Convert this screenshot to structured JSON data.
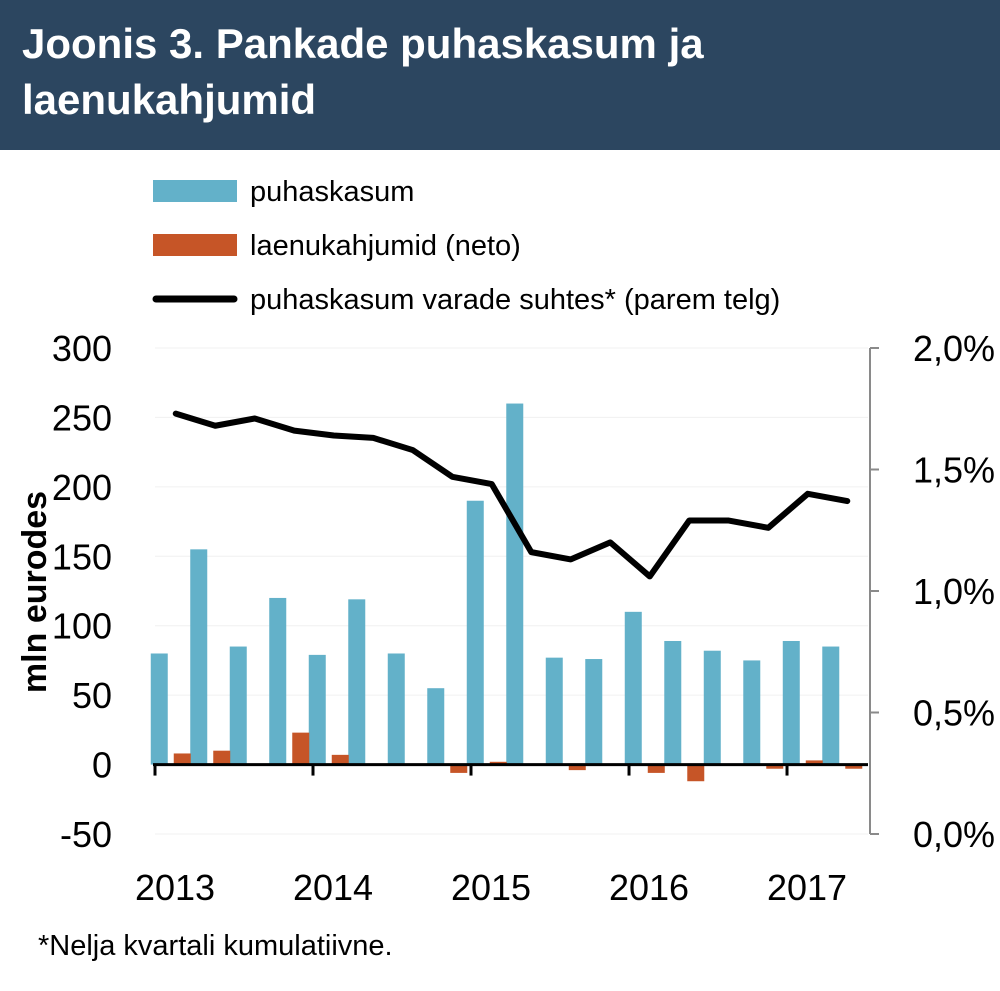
{
  "header": {
    "title": "Joonis 3. Pankade puhaskasum ja laenukahjumid"
  },
  "footnote": "*Nelja kvartali kumulatiivne.",
  "chart_data": {
    "type": "bar",
    "title": "Joonis 3. Pankade puhaskasum ja laenukahjumid",
    "ylabel": "mln eurodes",
    "ylim": [
      -50,
      300
    ],
    "y_ticks": [
      "300",
      "250",
      "200",
      "150",
      "100",
      "50",
      "0",
      "-50"
    ],
    "y2lim": [
      0.0,
      2.0
    ],
    "y2_ticks": [
      "2,0%",
      "1,5%",
      "1,0%",
      "0,5%",
      "0,0%"
    ],
    "x_labels": [
      "2013",
      "2014",
      "2015",
      "2016",
      "2017"
    ],
    "quarters_per_year": 4,
    "legend_position": "top",
    "series": [
      {
        "name": "puhaskasum",
        "type": "bar",
        "axis": "left",
        "color": "#63b1c9",
        "values": [
          80,
          155,
          85,
          120,
          79,
          119,
          80,
          55,
          190,
          260,
          77,
          76,
          110,
          89,
          82,
          75,
          89,
          85
        ]
      },
      {
        "name": "laenukahjumid (neto)",
        "type": "bar",
        "axis": "left",
        "color": "#c65527",
        "values": [
          8,
          10,
          0,
          23,
          7,
          0,
          0,
          -6,
          2,
          0,
          -4,
          0,
          -6,
          -12,
          0,
          -3,
          3,
          -3
        ]
      },
      {
        "name": "puhaskasum varade suhtes* (parem telg)",
        "type": "line",
        "axis": "right",
        "color": "#000000",
        "values": [
          1.73,
          1.68,
          1.71,
          1.66,
          1.64,
          1.63,
          1.58,
          1.47,
          1.44,
          1.16,
          1.13,
          1.2,
          1.06,
          1.29,
          1.29,
          1.26,
          1.4,
          1.37
        ]
      }
    ]
  }
}
